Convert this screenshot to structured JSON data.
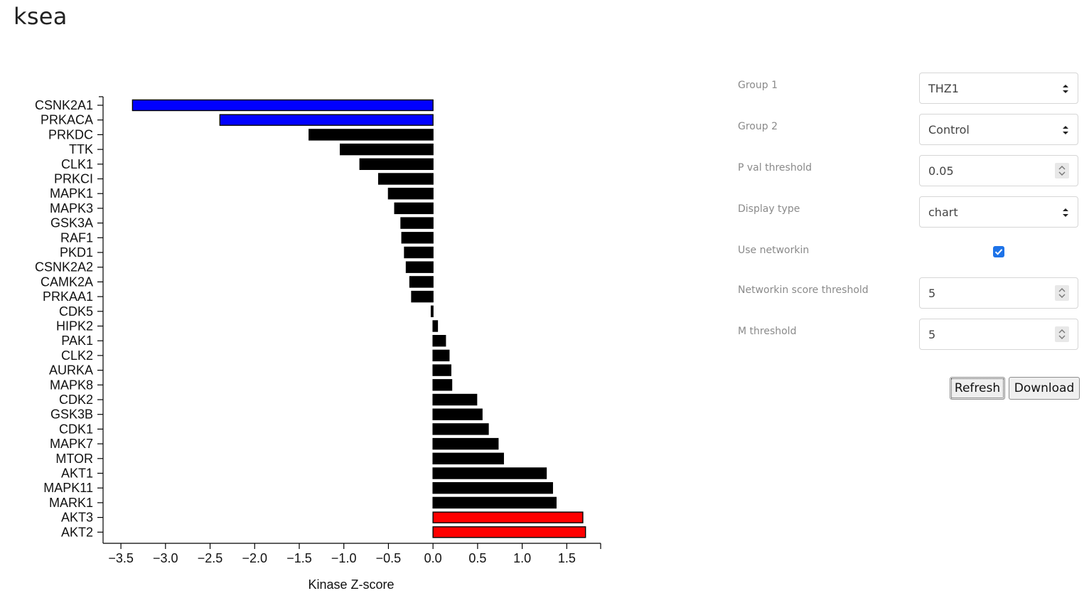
{
  "app": {
    "title": "ksea"
  },
  "controls": {
    "group1": {
      "label": "Group 1",
      "value": "THZ1"
    },
    "group2": {
      "label": "Group 2",
      "value": "Control"
    },
    "pval": {
      "label": "P val threshold",
      "value": "0.05"
    },
    "display": {
      "label": "Display type",
      "value": "chart"
    },
    "networkin": {
      "label": "Use networkin",
      "checked": true
    },
    "networkin_score": {
      "label": "Networkin score threshold",
      "value": "5"
    },
    "m_threshold": {
      "label": "M threshold",
      "value": "5"
    },
    "refresh_label": "Refresh",
    "download_label": "Download"
  },
  "colors": {
    "negative_sig": "#0000ff",
    "positive_sig": "#ff0000",
    "neutral": "#000000",
    "checkbox": "#1e73e8"
  },
  "chart_data": {
    "type": "bar",
    "orientation": "horizontal",
    "xlabel": "Kinase Z-score",
    "xlim": [
      -3.7,
      1.88
    ],
    "xticks": [
      "-3.5",
      "-3.0",
      "-2.5",
      "-2.0",
      "-1.5",
      "-1.0",
      "-0.5",
      "0.0",
      "0.5",
      "1.0",
      "1.5"
    ],
    "xtick_values": [
      -3.5,
      -3.0,
      -2.5,
      -2.0,
      -1.5,
      -1.0,
      -0.5,
      0.0,
      0.5,
      1.0,
      1.5
    ],
    "categories": [
      "CSNK2A1",
      "PRKACA",
      "PRKDC",
      "TTK",
      "CLK1",
      "PRKCI",
      "MAPK1",
      "MAPK3",
      "GSK3A",
      "RAF1",
      "PKD1",
      "CSNK2A2",
      "CAMK2A",
      "PRKAA1",
      "CDK5",
      "HIPK2",
      "PAK1",
      "CLK2",
      "AURKA",
      "MAPK8",
      "CDK2",
      "GSK3B",
      "CDK1",
      "MAPK7",
      "MTOR",
      "AKT1",
      "MAPK11",
      "MARK1",
      "AKT3",
      "AKT2"
    ],
    "values": [
      -3.37,
      -2.39,
      -1.39,
      -1.04,
      -0.82,
      -0.61,
      -0.5,
      -0.43,
      -0.36,
      -0.35,
      -0.32,
      -0.3,
      -0.26,
      -0.24,
      -0.02,
      0.05,
      0.14,
      0.18,
      0.2,
      0.21,
      0.49,
      0.55,
      0.62,
      0.73,
      0.79,
      1.27,
      1.34,
      1.38,
      1.68,
      1.71
    ],
    "bar_colors": [
      "#0000ff",
      "#0000ff",
      "#000000",
      "#000000",
      "#000000",
      "#000000",
      "#000000",
      "#000000",
      "#000000",
      "#000000",
      "#000000",
      "#000000",
      "#000000",
      "#000000",
      "#000000",
      "#000000",
      "#000000",
      "#000000",
      "#000000",
      "#000000",
      "#000000",
      "#000000",
      "#000000",
      "#000000",
      "#000000",
      "#000000",
      "#000000",
      "#000000",
      "#ff0000",
      "#ff0000"
    ]
  }
}
